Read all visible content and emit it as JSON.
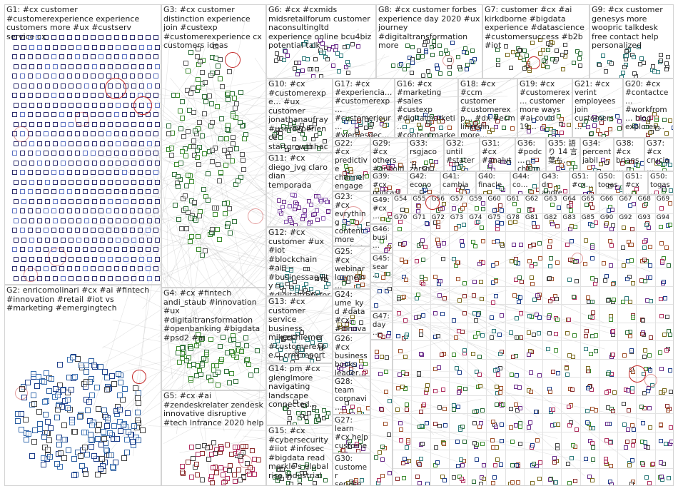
{
  "groups": [
    {
      "id": "G1",
      "label": "G1: #cx customer #customerexperience experience customers more #ux #custserv service cx"
    },
    {
      "id": "G2",
      "label": "G2: enricomolinari #cx #ai #fintech #innovation #retail #iot vs #marketing #emergingtech"
    },
    {
      "id": "G3",
      "label": "G3: #cx customer distinction experience join #custexp #customerexperience cx customers ideas"
    },
    {
      "id": "G4",
      "label": "G4: #cx #fintech andi_staub #innovation #ux #digitaltransformation #openbanking #bigdata #psd2 #ai"
    },
    {
      "id": "G5",
      "label": "G5: #cx #ai #zendeskrelater zendesk innovative disruptive #tech lnfrance 2020 help"
    },
    {
      "id": "G6",
      "label": "G6: #cx #cxmids midsretailforum customer naconsultingltd experience online bcu4biz potential talk"
    },
    {
      "id": "G7",
      "label": "G7: customer #cx #ai kirkdborne #bigdata experience #datascience #customersuccess #b2b #iot"
    },
    {
      "id": "G8",
      "label": "G8: #cx customer forbes experience day 2020 #ux journey #digitaltransformation more"
    },
    {
      "id": "G9",
      "label": "G9: #cx customer genesys more woopric talkdesk free contact help personalized"
    },
    {
      "id": "G10",
      "label": "G10: #cx #customerexpe… #ux customer jonathanaufray #userexperience startgrowthhack nice user…"
    },
    {
      "id": "G11",
      "label": "G11: #cx diego_jvg claro dian temporada"
    },
    {
      "id": "G12",
      "label": "G12: #cx customer #ux #iot #blockchain #ai #businessagility #digitaltransfor… nice experience"
    },
    {
      "id": "G13",
      "label": "G13: #cx customer service business mikeschiemer #customerexpe… crm report one…"
    },
    {
      "id": "G14",
      "label": "G14: pm #cx glenglmore navigating landscape connected…"
    },
    {
      "id": "G15",
      "label": "G15: #cx #cybersecurity #iiot #infosec #bigdata read merkle's global rise industrial"
    },
    {
      "id": "G16",
      "label": "G16: #cx #marketing #sales #custexp #digitalmarketi… #contentmarke…"
    },
    {
      "id": "G17",
      "label": "G17: #cx #experiencia… #customerexp… #customerjour… #viernesdec…"
    },
    {
      "id": "G18",
      "label": "G18: #cx #ccm customer #customerexp… #dx #ecm linkedin more…"
    },
    {
      "id": "G19",
      "label": "G19: #cx #customerex… customer more ways #ai covid 19…"
    },
    {
      "id": "G20",
      "label": "G20: #cx #contactce… #workfrom… blog explores…"
    },
    {
      "id": "G21",
      "label": "G21: #cx verint employees join customers…"
    },
    {
      "id": "G22",
      "label": "G22: #cx predictive channel engage… scores…"
    },
    {
      "id": "G23",
      "label": "G23: #cx evrything content more product…"
    },
    {
      "id": "G24",
      "label": "G24: ume_kyd #data #cx #innovat…"
    },
    {
      "id": "G25",
      "label": "G25: #cx webinar logmein…"
    },
    {
      "id": "G26",
      "label": "G26: #cx business books leader…"
    },
    {
      "id": "G27",
      "label": "G27: learn #cx help custome…"
    },
    {
      "id": "G28",
      "label": "G28: team coronavi…"
    },
    {
      "id": "G29",
      "label": "G29: #cx others #onhold…"
    },
    {
      "id": "G30",
      "label": "G30: customer service…"
    },
    {
      "id": "G31",
      "label": "G31: #cx #analyt… #machi…"
    },
    {
      "id": "G32",
      "label": "G32: until #stater…"
    },
    {
      "id": "G33",
      "label": "G33: rsgjaco… zarsg…"
    },
    {
      "id": "G34",
      "label": "G34: percent jabil…"
    },
    {
      "id": "G35",
      "label": "G35: 語 り 14 言 葉ち…"
    },
    {
      "id": "G36",
      "label": "G36: #podc… channel…"
    },
    {
      "id": "G37",
      "label": "G37: #cx crucia…"
    },
    {
      "id": "G38",
      "label": "G38: #cx brians…"
    },
    {
      "id": "G39",
      "label": "G39: #cx podcast…"
    },
    {
      "id": "G40",
      "label": "G40: finacle…"
    },
    {
      "id": "G41",
      "label": "G41: cambia…"
    },
    {
      "id": "G42",
      "label": "G42: econo…"
    },
    {
      "id": "G43",
      "label": "G43: dr andre…"
    },
    {
      "id": "G44",
      "label": "G44: co…"
    },
    {
      "id": "G45",
      "label": "G45: sear…"
    },
    {
      "id": "G46",
      "label": "G46: busi…"
    },
    {
      "id": "G47",
      "label": "G47: day…"
    },
    {
      "id": "G49",
      "label": "G49: #cx…"
    },
    {
      "id": "G50",
      "label": "G50: togas…"
    },
    {
      "id": "G51",
      "label": "G51: #cx…"
    },
    {
      "id": "G52",
      "label": "G52"
    },
    {
      "id": "G53",
      "label": "G53"
    }
  ],
  "minor_labels": [
    "G54",
    "G55",
    "G56",
    "G57",
    "G59",
    "G60",
    "G61",
    "G62",
    "G63",
    "G64",
    "G65",
    "G66",
    "G67",
    "G68",
    "G69",
    "G70",
    "G71",
    "G72",
    "G73",
    "G74",
    "G75",
    "G78",
    "G81",
    "G82",
    "G83",
    "G85",
    "G90",
    "G92",
    "G93",
    "G94",
    "G98",
    "G99"
  ],
  "colors": {
    "background": "#ffffff",
    "border": "#d4d4d4",
    "edge": "#9a9a9a",
    "ring": "#c42828",
    "g1_node": "#2b2b6b"
  }
}
